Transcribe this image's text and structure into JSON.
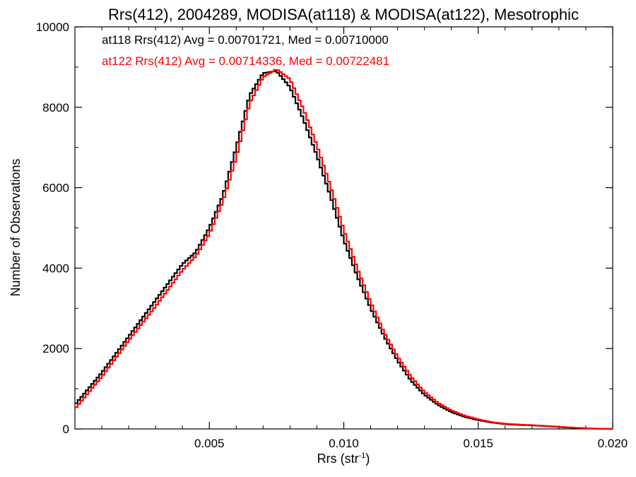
{
  "chart_data": {
    "type": "line",
    "style": "step-histogram",
    "title": "Rrs(412), 2004289, MODISA(at118) & MODISA(at122), Mesotrophic",
    "xlabel_main": "Rrs (str",
    "xlabel_sup": "-1",
    "xlabel_end": ")",
    "ylabel": "Number of Observations",
    "xlim": [
      0.0,
      0.02
    ],
    "ylim": [
      0,
      10000
    ],
    "x_ticks": [
      0.005,
      0.01,
      0.015,
      0.02
    ],
    "x_tick_labels": [
      "0.005",
      "0.010",
      "0.015",
      "0.020"
    ],
    "y_ticks": [
      0,
      2000,
      4000,
      6000,
      8000,
      10000
    ],
    "y_tick_labels": [
      "0",
      "2000",
      "4000",
      "6000",
      "8000",
      "10000"
    ],
    "grid": false,
    "legend_position": "top-left",
    "x": [
      0.0,
      0.001,
      0.002,
      0.003,
      0.004,
      0.0045,
      0.005,
      0.0055,
      0.006,
      0.0065,
      0.007,
      0.0075,
      0.008,
      0.0085,
      0.009,
      0.0095,
      0.01,
      0.0105,
      0.011,
      0.0115,
      0.012,
      0.0125,
      0.013,
      0.0135,
      0.014,
      0.0145,
      0.015,
      0.0155,
      0.016,
      0.0165,
      0.017,
      0.0175,
      0.018,
      0.0185,
      0.019,
      0.0195,
      0.02
    ],
    "series": [
      {
        "name": "at118",
        "color": "#000000",
        "legend": "at118 Rrs(412) Avg = 0.00701721, Med = 0.00710000",
        "values": [
          600,
          1400,
          2300,
          3200,
          4100,
          4400,
          5000,
          5800,
          7000,
          8300,
          8850,
          8900,
          8500,
          7700,
          6800,
          5800,
          4700,
          3800,
          3000,
          2300,
          1700,
          1200,
          850,
          600,
          420,
          300,
          220,
          160,
          120,
          100,
          90,
          70,
          50,
          30,
          15,
          5,
          0
        ]
      },
      {
        "name": "at122",
        "color": "#ff0000",
        "legend": "at122 Rrs(412) Avg = 0.00714336, Med = 0.00722481",
        "values": [
          500,
          1300,
          2200,
          3050,
          3950,
          4300,
          4850,
          5650,
          6750,
          8100,
          8750,
          8950,
          8700,
          7950,
          7050,
          6050,
          4950,
          4000,
          3150,
          2400,
          1800,
          1300,
          920,
          650,
          460,
          330,
          240,
          170,
          130,
          110,
          95,
          75,
          55,
          35,
          18,
          6,
          0
        ]
      }
    ]
  }
}
